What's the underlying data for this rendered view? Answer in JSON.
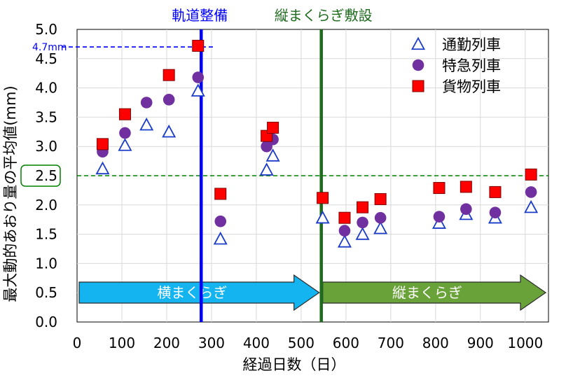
{
  "chart_data": {
    "type": "scatter",
    "xlabel": "経過日数（日）",
    "ylabel": "最大動的あおり量の平均値(mm)",
    "xlim": [
      0,
      1050
    ],
    "ylim": [
      0,
      5.0
    ],
    "x_ticks": [
      "0",
      "100",
      "200",
      "300",
      "400",
      "500",
      "600",
      "700",
      "800",
      "900",
      "1000"
    ],
    "y_ticks": [
      "0.0",
      "0.5",
      "1.0",
      "1.5",
      "2.0",
      "2.5",
      "3.0",
      "3.5",
      "4.0",
      "4.5",
      "5.0"
    ],
    "grid": true,
    "legend_position": "top-right",
    "series": [
      {
        "name": "通勤列車",
        "marker": "triangle",
        "color": "#1a3cc8",
        "points": [
          [
            57,
            2.62
          ],
          [
            107,
            3.02
          ],
          [
            155,
            3.37
          ],
          [
            205,
            3.25
          ],
          [
            270,
            3.95
          ],
          [
            320,
            1.42
          ],
          [
            423,
            2.6
          ],
          [
            437,
            2.84
          ],
          [
            548,
            1.78
          ],
          [
            597,
            1.37
          ],
          [
            637,
            1.5
          ],
          [
            677,
            1.6
          ],
          [
            808,
            1.69
          ],
          [
            868,
            1.84
          ],
          [
            933,
            1.78
          ],
          [
            1013,
            1.96
          ]
        ]
      },
      {
        "name": "特急列車",
        "marker": "circle",
        "color": "#7030a0",
        "points": [
          [
            57,
            2.91
          ],
          [
            107,
            3.23
          ],
          [
            155,
            3.75
          ],
          [
            205,
            3.8
          ],
          [
            270,
            4.18
          ],
          [
            320,
            1.72
          ],
          [
            423,
            3.0
          ],
          [
            437,
            3.12
          ],
          [
            597,
            1.56
          ],
          [
            637,
            1.7
          ],
          [
            677,
            1.78
          ],
          [
            808,
            1.8
          ],
          [
            868,
            1.93
          ],
          [
            933,
            1.87
          ],
          [
            1013,
            2.22
          ]
        ]
      },
      {
        "name": "貨物列車",
        "marker": "square",
        "color": "#ff0000",
        "points": [
          [
            57,
            3.04
          ],
          [
            107,
            3.55
          ],
          [
            205,
            4.22
          ],
          [
            270,
            4.72
          ],
          [
            320,
            2.19
          ],
          [
            423,
            3.18
          ],
          [
            437,
            3.32
          ],
          [
            548,
            2.12
          ],
          [
            597,
            1.78
          ],
          [
            637,
            1.96
          ],
          [
            677,
            2.1
          ],
          [
            808,
            2.29
          ],
          [
            868,
            2.31
          ],
          [
            933,
            2.22
          ],
          [
            1013,
            2.52
          ]
        ]
      }
    ],
    "vertical_lines": [
      {
        "x": 277,
        "label": "軌道整備",
        "color": "#0000ff"
      },
      {
        "x": 545,
        "label": "縦まくらぎ敷設",
        "color": "#1e6b1e"
      }
    ],
    "reference_lines": [
      {
        "y": 4.7,
        "label": "4.7mm",
        "color": "#0000ff"
      },
      {
        "y": 2.5,
        "label": "2.5",
        "color": "#008000"
      }
    ],
    "arrows": [
      {
        "label": "横まくらぎ",
        "x_start": 0,
        "x_end": 545,
        "color": "#14b4f0"
      },
      {
        "label": "縦まくらぎ",
        "x_start": 545,
        "x_end": 1050,
        "color": "#6aa23a"
      }
    ]
  }
}
